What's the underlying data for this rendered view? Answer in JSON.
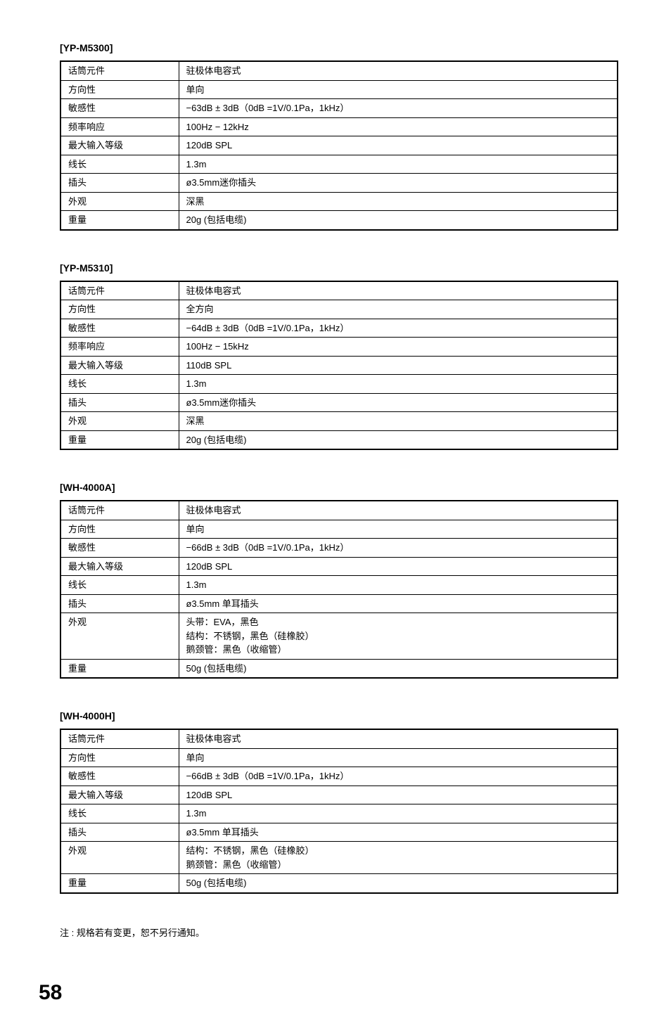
{
  "sections": [
    {
      "title": "[YP-M5300]",
      "rows": [
        {
          "label": "话筒元件",
          "value": "驻极体电容式"
        },
        {
          "label": "方向性",
          "value": "单向"
        },
        {
          "label": "敏感性",
          "value": "−63dB ± 3dB（0dB =1V/0.1Pa，1kHz）"
        },
        {
          "label": "频率响应",
          "value": "100Hz − 12kHz"
        },
        {
          "label": "最大输入等级",
          "value": "120dB SPL"
        },
        {
          "label": "线长",
          "value": "1.3m"
        },
        {
          "label": "插头",
          "value": "ø3.5mm迷你插头"
        },
        {
          "label": "外观",
          "value": "深黑"
        },
        {
          "label": "重量",
          "value": "20g (包括电缆)"
        }
      ]
    },
    {
      "title": "[YP-M5310]",
      "rows": [
        {
          "label": "话筒元件",
          "value": "驻极体电容式"
        },
        {
          "label": "方向性",
          "value": "全方向"
        },
        {
          "label": "敏感性",
          "value": "−64dB ± 3dB（0dB =1V/0.1Pa，1kHz）"
        },
        {
          "label": "频率响应",
          "value": "100Hz − 15kHz"
        },
        {
          "label": "最大输入等级",
          "value": "110dB SPL"
        },
        {
          "label": "线长",
          "value": "1.3m"
        },
        {
          "label": "插头",
          "value": "ø3.5mm迷你插头"
        },
        {
          "label": "外观",
          "value": "深黑"
        },
        {
          "label": "重量",
          "value": "20g (包括电缆)"
        }
      ]
    },
    {
      "title": "[WH-4000A]",
      "rows": [
        {
          "label": "话筒元件",
          "value": "驻极体电容式"
        },
        {
          "label": "方向性",
          "value": "单向"
        },
        {
          "label": "敏感性",
          "value": "−66dB ± 3dB（0dB =1V/0.1Pa，1kHz）"
        },
        {
          "label": "最大输入等级",
          "value": "120dB SPL"
        },
        {
          "label": "线长",
          "value": "1.3m"
        },
        {
          "label": "插头",
          "value": "ø3.5mm 单耳插头"
        },
        {
          "label": "外观",
          "value": "头带：EVA，黑色\n结构：不锈钢，黑色（硅橡胶）\n鹅颈管：黑色（收缩管）"
        },
        {
          "label": "重量",
          "value": "50g (包括电缆)"
        }
      ]
    },
    {
      "title": "[WH-4000H]",
      "rows": [
        {
          "label": "话筒元件",
          "value": "驻极体电容式"
        },
        {
          "label": "方向性",
          "value": "单向"
        },
        {
          "label": "敏感性",
          "value": "−66dB ± 3dB（0dB =1V/0.1Pa，1kHz）"
        },
        {
          "label": "最大输入等级",
          "value": "120dB SPL"
        },
        {
          "label": "线长",
          "value": "1.3m"
        },
        {
          "label": "插头",
          "value": "ø3.5mm 单耳插头"
        },
        {
          "label": "外观",
          "value": "结构：不锈钢，黑色（硅橡胶）\n鹅颈管：黑色（收缩管）"
        },
        {
          "label": "重量",
          "value": "50g (包括电缆)"
        }
      ]
    }
  ],
  "note": "注 : 规格若有变更，恕不另行通知。",
  "pageNumber": "58"
}
